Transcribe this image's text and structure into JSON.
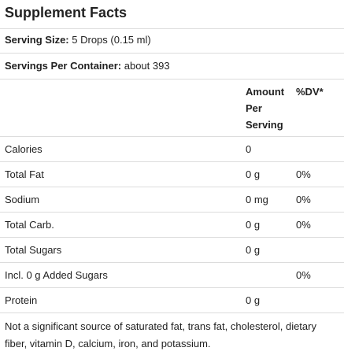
{
  "header": {
    "title": "Supplement Facts"
  },
  "serving_size": {
    "label": "Serving Size:",
    "value": "5 Drops (0.15 ml)"
  },
  "servings_per_container": {
    "label": "Servings Per Container:",
    "value": "about 393"
  },
  "table": {
    "headers": {
      "amount": "Amount Per Serving",
      "dv": "%DV*"
    },
    "rows": [
      {
        "name": "Calories",
        "amount": "0"
      },
      {
        "name": "Total Fat",
        "amount": "0 g",
        "dv": "0%"
      },
      {
        "name": "Sodium",
        "amount": "0 mg",
        "dv": "0%"
      },
      {
        "name": "Total Carb.",
        "amount": "0 g",
        "dv": "0%"
      },
      {
        "name": "Total Sugars",
        "amount": "0 g"
      },
      {
        "name": "Incl. 0 g Added Sugars",
        "dv": "0%"
      },
      {
        "name": "Protein",
        "amount": "0 g"
      }
    ]
  },
  "footnote": "Not a significant source of saturated fat, trans fat, cholesterol, dietary fiber, vitamin D, calcium, iron, and potassium."
}
